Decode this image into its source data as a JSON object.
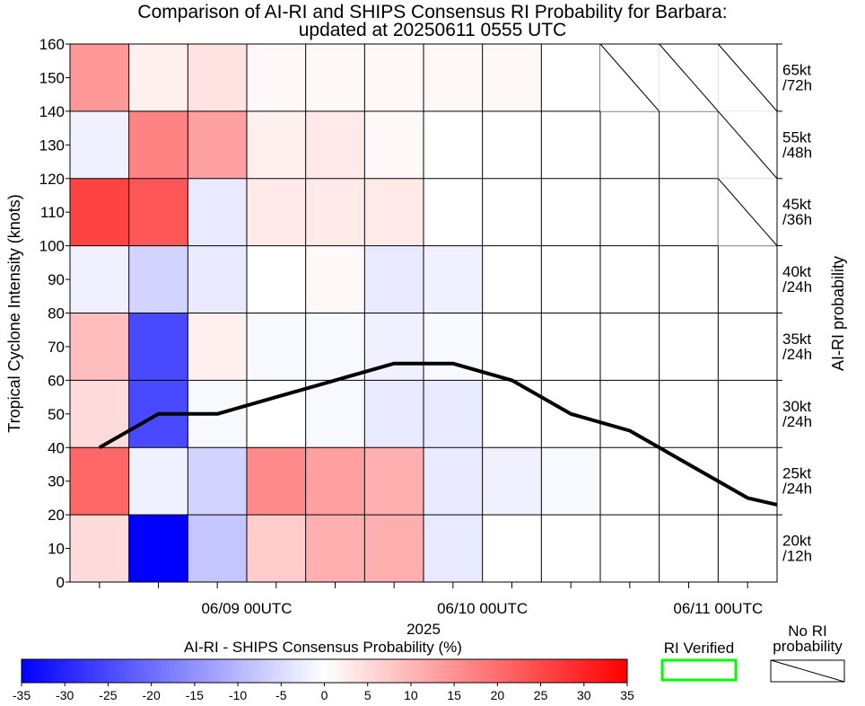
{
  "chart_data": {
    "type": "heatmap",
    "title": "Comparison of AI-RI and SHIPS Consensus RI Probability for Barbara:",
    "subtitle": "updated at 20250611 0555 UTC",
    "ylabel": "Tropical Cyclone Intensity (knots)",
    "ylim": [
      0,
      160
    ],
    "y_ticks": [
      0,
      10,
      20,
      30,
      40,
      50,
      60,
      70,
      80,
      90,
      100,
      110,
      120,
      130,
      140,
      150,
      160
    ],
    "x_tick_labels": [
      "06/09 00UTC",
      "06/10 00UTC",
      "06/11 00UTC"
    ],
    "x_tick_label_cols": [
      3,
      7,
      11
    ],
    "xlabel": "2025",
    "right_axis_label": "AI-RI probability",
    "ri_thresholds": [
      "20kt\n/12h",
      "25kt\n/24h",
      "30kt\n/24h",
      "35kt\n/24h",
      "40kt\n/24h",
      "45kt\n/36h",
      "55kt\n/48h",
      "65kt\n/72h"
    ],
    "n_cols": 12,
    "cell_values": [
      [
        5,
        -35,
        -8,
        7,
        11,
        11,
        -3,
        0,
        0,
        0,
        0,
        0
      ],
      [
        21,
        -2,
        -6,
        16,
        13,
        11,
        -3,
        -2,
        -1,
        0,
        0,
        0
      ],
      [
        5,
        -25,
        -1,
        0,
        -1,
        -3,
        -3,
        0,
        0,
        0,
        0,
        0
      ],
      [
        9,
        -25,
        2,
        -1,
        -1,
        -2,
        -1,
        0,
        0,
        0,
        0,
        0
      ],
      [
        -2,
        -6,
        -3,
        0,
        1,
        -3,
        -2,
        0,
        0,
        0,
        0,
        0
      ],
      [
        26,
        23,
        -3,
        3,
        3,
        3,
        0,
        0,
        0,
        0,
        0,
        null
      ],
      [
        -2,
        17,
        13,
        2,
        3,
        1,
        0,
        0,
        0,
        0,
        0,
        null
      ],
      [
        14,
        2,
        4,
        1,
        1,
        1,
        1,
        1,
        0,
        null,
        null,
        null
      ]
    ],
    "intensity_track": {
      "name": "Intensity",
      "x": [
        0,
        1,
        2,
        3,
        4,
        5,
        6,
        7,
        8,
        9,
        10,
        11,
        12
      ],
      "values": [
        40,
        50,
        50,
        55,
        60,
        65,
        65,
        60,
        50,
        45,
        35,
        25,
        23
      ]
    },
    "colorbar": {
      "label": "AI-RI - SHIPS Consensus Probability (%)",
      "ticks": [
        "-35",
        "-30",
        "-25",
        "-20",
        "-15",
        "-10",
        "-5",
        "0",
        "5",
        "10",
        "15",
        "20",
        "25",
        "30",
        "35"
      ],
      "min": -35,
      "max": 35
    },
    "legend": {
      "ri_verified_label": "RI Verified",
      "ri_verified_color": "#00ff00",
      "no_ri_label_1": "No RI",
      "no_ri_label_2": "probability"
    }
  }
}
